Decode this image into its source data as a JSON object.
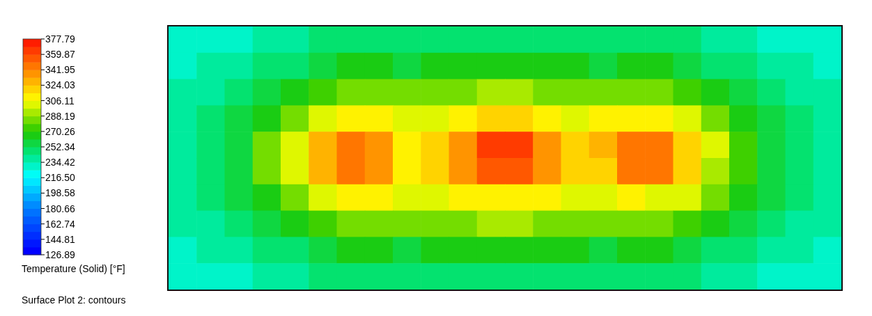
{
  "chart_data": {
    "type": "heatmap",
    "clabel": "Temperature (Solid) [°F]",
    "annotations": [
      "Surface Plot 2: contours"
    ],
    "clim": [
      126.89,
      377.79
    ],
    "cticks": [
      126.89,
      144.81,
      162.74,
      180.66,
      198.58,
      {
        "value": 216.5,
        "label": "216.50"
      },
      234.42,
      252.34,
      270.26,
      288.19,
      306.11,
      324.03,
      341.95,
      359.87,
      377.79
    ],
    "tick_labels": false,
    "categories": [
      null,
      null,
      null,
      null,
      null,
      null,
      null,
      null,
      null,
      null,
      null,
      null,
      null,
      null,
      null,
      null,
      null,
      null,
      null,
      null,
      null,
      null,
      null,
      null
    ],
    "y_categories": [
      null,
      null,
      null,
      null,
      null,
      null,
      null,
      null,
      null,
      null
    ],
    "cells": [
      [
        232,
        232,
        234,
        236,
        240,
        244,
        246,
        246,
        244,
        246,
        250,
        252,
        252,
        250,
        246,
        244,
        246,
        246,
        244,
        240,
        236,
        234,
        232,
        232
      ],
      [
        234,
        236,
        240,
        246,
        252,
        258,
        262,
        262,
        260,
        262,
        266,
        268,
        268,
        266,
        262,
        260,
        262,
        262,
        258,
        252,
        246,
        240,
        236,
        234
      ],
      [
        236,
        240,
        248,
        258,
        268,
        276,
        282,
        284,
        282,
        284,
        288,
        290,
        290,
        288,
        284,
        282,
        284,
        282,
        276,
        268,
        258,
        248,
        240,
        236
      ],
      [
        238,
        244,
        256,
        270,
        286,
        300,
        310,
        314,
        306,
        304,
        310,
        318,
        318,
        312,
        306,
        308,
        314,
        310,
        300,
        286,
        270,
        256,
        244,
        238
      ],
      [
        240,
        246,
        260,
        280,
        300,
        330,
        350,
        340,
        310,
        318,
        340,
        362,
        360,
        340,
        318,
        326,
        350,
        346,
        320,
        298,
        278,
        258,
        246,
        240
      ],
      [
        240,
        246,
        260,
        280,
        300,
        328,
        348,
        336,
        310,
        316,
        338,
        358,
        356,
        338,
        316,
        324,
        346,
        342,
        318,
        296,
        276,
        258,
        246,
        240
      ],
      [
        238,
        244,
        256,
        270,
        286,
        300,
        308,
        310,
        304,
        302,
        308,
        314,
        314,
        310,
        304,
        306,
        310,
        306,
        298,
        284,
        268,
        254,
        244,
        238
      ],
      [
        236,
        240,
        248,
        258,
        268,
        276,
        282,
        284,
        282,
        284,
        288,
        290,
        290,
        288,
        284,
        282,
        284,
        282,
        276,
        268,
        258,
        248,
        240,
        236
      ],
      [
        234,
        236,
        240,
        246,
        252,
        258,
        262,
        262,
        260,
        262,
        266,
        268,
        268,
        266,
        262,
        260,
        262,
        262,
        258,
        252,
        246,
        240,
        236,
        234
      ],
      [
        232,
        232,
        234,
        236,
        240,
        244,
        248,
        250,
        248,
        248,
        250,
        252,
        252,
        250,
        248,
        246,
        248,
        248,
        244,
        240,
        236,
        234,
        232,
        232
      ]
    ]
  }
}
